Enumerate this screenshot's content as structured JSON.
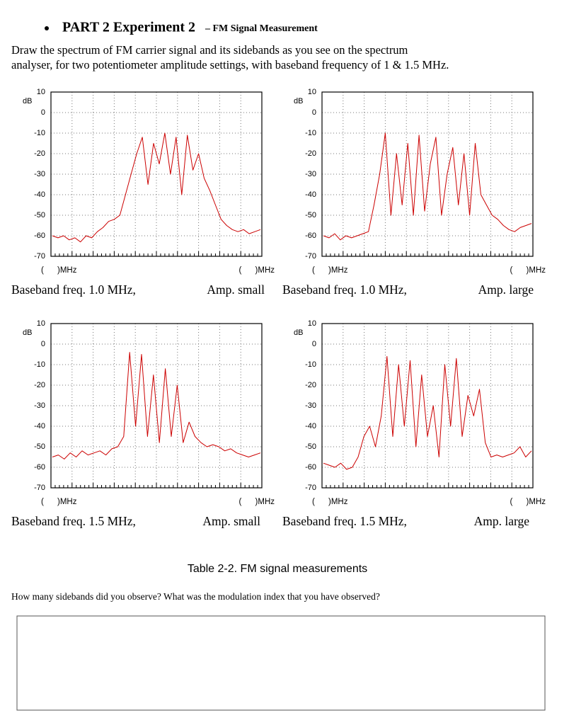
{
  "heading": {
    "title": "PART 2 Experiment 2",
    "subtitle": "– FM Signal Measurement"
  },
  "instructions": [
    "Draw the spectrum of FM carrier signal and its sidebands as you see on the spectrum",
    "analyser, for two potentiometer amplitude settings, with baseband frequency of 1 & 1.5 MHz."
  ],
  "chart_data": [
    {
      "type": "line",
      "y_label": "dB",
      "x_label_left": "(      )MHz",
      "x_label_right": "(      )MHz",
      "caption_left": "Baseband freq. 1.0 MHz,",
      "caption_right": "Amp. small",
      "ylim": [
        -70,
        10
      ],
      "yticks": [
        10,
        0,
        -10,
        -20,
        -30,
        -40,
        -50,
        -60,
        -70
      ],
      "grid": true,
      "color": "#cc0000",
      "values": [
        -60,
        -61,
        -60,
        -62,
        -61,
        -63,
        -60,
        -61,
        -58,
        -56,
        -53,
        -52,
        -50,
        -40,
        -30,
        -20,
        -12,
        -35,
        -15,
        -25,
        -10,
        -30,
        -12,
        -40,
        -11,
        -28,
        -20,
        -32,
        -38,
        -45,
        -52,
        -55,
        -57,
        -58,
        -57,
        -59,
        -58,
        -57
      ]
    },
    {
      "type": "line",
      "y_label": "dB",
      "x_label_left": "(      )MHz",
      "x_label_right": "(      )MHz",
      "caption_left": "Baseband freq. 1.0 MHz,",
      "caption_right": "Amp. large",
      "ylim": [
        -70,
        10
      ],
      "yticks": [
        10,
        0,
        -10,
        -20,
        -30,
        -40,
        -50,
        -60,
        -70
      ],
      "grid": true,
      "color": "#cc0000",
      "values": [
        -60,
        -61,
        -59,
        -62,
        -60,
        -61,
        -60,
        -59,
        -58,
        -45,
        -30,
        -10,
        -50,
        -20,
        -45,
        -15,
        -50,
        -11,
        -48,
        -25,
        -12,
        -50,
        -30,
        -17,
        -45,
        -20,
        -50,
        -15,
        -40,
        -45,
        -50,
        -52,
        -55,
        -57,
        -58,
        -56,
        -55,
        -54
      ]
    },
    {
      "type": "line",
      "y_label": "dB",
      "x_label_left": "(      )MHz",
      "x_label_right": "(      )MHz",
      "caption_left": "Baseband freq. 1.5 MHz,",
      "caption_right": "Amp. small",
      "ylim": [
        -70,
        10
      ],
      "yticks": [
        10,
        0,
        -10,
        -20,
        -30,
        -40,
        -50,
        -60,
        -70
      ],
      "grid": true,
      "color": "#cc0000",
      "values": [
        -55,
        -54,
        -56,
        -53,
        -55,
        -52,
        -54,
        -53,
        -52,
        -54,
        -51,
        -50,
        -45,
        -4,
        -40,
        -5,
        -45,
        -15,
        -48,
        -12,
        -45,
        -20,
        -48,
        -38,
        -45,
        -48,
        -50,
        -49,
        -50,
        -52,
        -51,
        -53,
        -54,
        -55,
        -54,
        -53
      ]
    },
    {
      "type": "line",
      "y_label": "dB",
      "x_label_left": "(      )MHz",
      "x_label_right": "(      )MHz",
      "caption_left": "Baseband freq. 1.5 MHz,",
      "caption_right": "Amp. large",
      "ylim": [
        -70,
        10
      ],
      "yticks": [
        10,
        0,
        -10,
        -20,
        -30,
        -40,
        -50,
        -60,
        -70
      ],
      "grid": true,
      "color": "#cc0000",
      "values": [
        -58,
        -59,
        -60,
        -58,
        -61,
        -60,
        -55,
        -45,
        -40,
        -50,
        -35,
        -6,
        -45,
        -10,
        -40,
        -8,
        -50,
        -15,
        -45,
        -30,
        -55,
        -10,
        -40,
        -7,
        -45,
        -25,
        -35,
        -22,
        -48,
        -55,
        -54,
        -55,
        -54,
        -53,
        -50,
        -55,
        -52
      ]
    }
  ],
  "table_caption": "Table 2-2. FM signal measurements",
  "question": "How many sidebands did you observe? What was the modulation index that you have observed?"
}
